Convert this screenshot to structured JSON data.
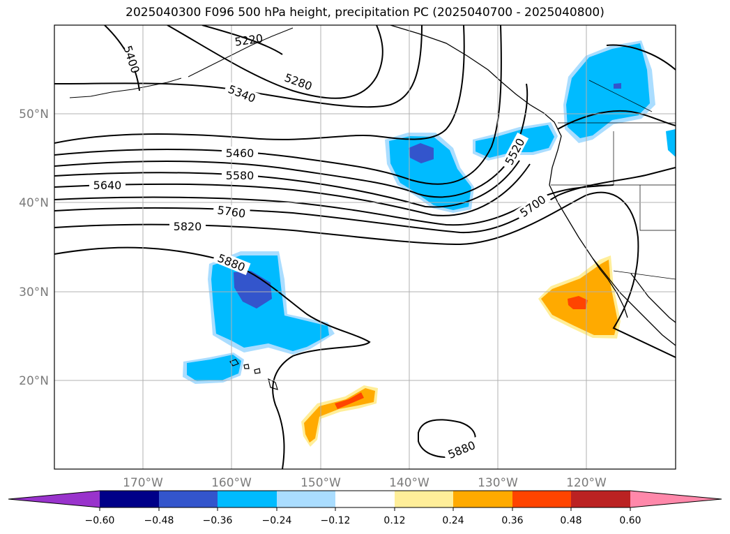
{
  "title": "2025040300 F096 500 hPa height, precipitation PC (2025040700 - 2025040800)",
  "map": {
    "lon_ticks": [
      "170°W",
      "160°W",
      "150°W",
      "140°W",
      "130°W",
      "120°W"
    ],
    "lat_ticks": [
      "50°N",
      "40°N",
      "30°N",
      "20°N"
    ],
    "contour_labels": [
      "5400",
      "5220",
      "5340",
      "5280",
      "5460",
      "5580",
      "5640",
      "5760",
      "5820",
      "5880",
      "5520",
      "5700",
      "5880"
    ],
    "gridlines": true
  },
  "colorbar": {
    "ticks": [
      "−0.60",
      "−0.48",
      "−0.36",
      "−0.24",
      "−0.12",
      "0.12",
      "0.24",
      "0.36",
      "0.48",
      "0.60"
    ],
    "colors": [
      "#9933cc",
      "#000088",
      "#3355cc",
      "#00bbff",
      "#aaddff",
      "#ffffff",
      "#ffee99",
      "#ffaa00",
      "#ff4400",
      "#bb2222",
      "#ff88aa"
    ]
  }
}
